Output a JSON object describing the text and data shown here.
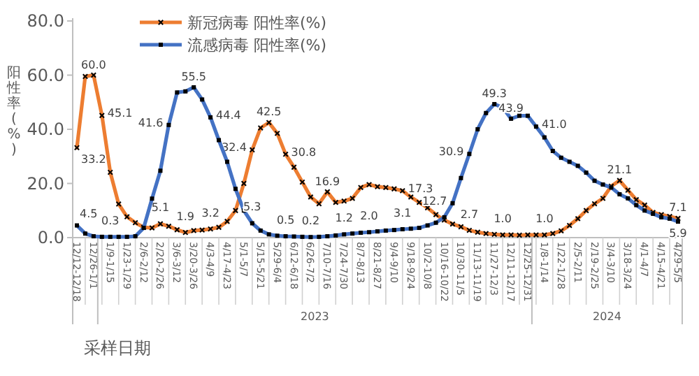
{
  "chart_data": {
    "type": "line",
    "ylabel": "阳性率(%)",
    "xlabel": "采样日期",
    "categories": [
      "12/12-12/18",
      null,
      "12/26-1/1",
      null,
      "1/9-1/15",
      null,
      "1/23-1/29",
      null,
      "2/6-2/12",
      null,
      "2/20-2/26",
      null,
      "3/6-3/12",
      null,
      "3/20-3/26",
      null,
      "4/3-4/9",
      null,
      "4/17-4/23",
      null,
      "5/1-5/7",
      null,
      "5/15-5/21",
      null,
      "5/29-6/4",
      null,
      "6/12-6/18",
      null,
      "6/26-7/2",
      null,
      "7/10-7/16",
      null,
      "7/24-7/30",
      null,
      "8/7-8/13",
      null,
      "8/21-8/27",
      null,
      "9/4-9/10",
      null,
      "9/18-9/24",
      null,
      "10/2-10/8",
      null,
      "10/16-10/22",
      null,
      "10/30-11/5",
      null,
      "11/13-11/19",
      null,
      "11/27-12/3",
      null,
      "12/11-12/17",
      null,
      "12/25-12/31",
      null,
      "1/8-1/14",
      null,
      "1/22-1/28",
      null,
      "2/5-2/11",
      null,
      "2/19-2/25",
      null,
      "3/4-3/10",
      null,
      "3/18-3/24",
      null,
      "4/1-4/7",
      null,
      "4/15-4/21",
      null,
      "4/29-5/5"
    ],
    "ylim": [
      0,
      80
    ],
    "yticks": [
      {
        "value": 0,
        "label": "0.0"
      },
      {
        "value": 20,
        "label": "20.0"
      },
      {
        "value": 40,
        "label": "40.0"
      },
      {
        "value": 60,
        "label": "60.0"
      },
      {
        "value": 80,
        "label": "80.0"
      }
    ],
    "legend": "top left",
    "grid": false,
    "line_style": "solid",
    "annotations": [
      "2023",
      "2024"
    ],
    "series": [
      {
        "name": "新冠病毒 阳性率(%)",
        "color": "#ed7d31",
        "marker": "cross",
        "values": [
          33.2,
          59.5,
          60.0,
          45.1,
          24.1,
          12.4,
          7.7,
          5.5,
          3.8,
          3.6,
          5.1,
          4.2,
          2.9,
          1.9,
          2.6,
          2.8,
          3.2,
          3.8,
          6.0,
          10.0,
          20.0,
          32.4,
          40.5,
          42.5,
          38.5,
          30.8,
          26.0,
          20.5,
          15.0,
          12.5,
          16.9,
          13.0,
          13.5,
          14.5,
          18.5,
          19.6,
          18.8,
          18.5,
          18.0,
          17.3,
          15.0,
          13.0,
          11.0,
          8.5,
          6.5,
          5.0,
          4.0,
          2.7,
          2.0,
          1.5,
          1.2,
          1.0,
          1.0,
          0.9,
          1.0,
          1.0,
          1.0,
          1.5,
          2.5,
          4.5,
          7.0,
          10.0,
          12.5,
          14.5,
          19.0,
          21.1,
          17.5,
          14.0,
          12.0,
          9.3,
          8.5,
          7.8,
          7.1
        ],
        "value_labels": [
          "33.2",
          null,
          "60.0",
          "45.1",
          null,
          null,
          null,
          null,
          null,
          null,
          "5.1",
          null,
          null,
          "1.9",
          null,
          null,
          "3.2",
          null,
          null,
          null,
          null,
          "32.4",
          null,
          "42.5",
          null,
          "30.8",
          null,
          null,
          null,
          null,
          "16.9",
          null,
          null,
          null,
          null,
          null,
          null,
          null,
          null,
          "17.3",
          null,
          null,
          null,
          null,
          null,
          null,
          null,
          "2.7",
          null,
          null,
          null,
          "1.0",
          null,
          null,
          null,
          null,
          "1.0",
          null,
          null,
          null,
          null,
          null,
          null,
          null,
          null,
          "21.1",
          null,
          null,
          null,
          null,
          null,
          null,
          "7.1"
        ]
      },
      {
        "name": "流感病毒 阳性率(%)",
        "color": "#4472c4",
        "marker": "square",
        "values": [
          4.5,
          1.5,
          0.5,
          0.3,
          0.3,
          0.3,
          0.3,
          0.5,
          3.6,
          14.4,
          24.7,
          41.6,
          53.6,
          54.0,
          55.5,
          51.0,
          44.4,
          36.0,
          28.0,
          18.0,
          10.0,
          5.3,
          2.6,
          1.2,
          0.7,
          0.5,
          0.4,
          0.3,
          0.2,
          0.3,
          0.5,
          0.8,
          1.2,
          1.5,
          1.8,
          2.0,
          2.3,
          2.6,
          2.8,
          3.1,
          3.3,
          3.6,
          4.5,
          5.5,
          7.5,
          12.7,
          22.0,
          30.9,
          40.0,
          46.0,
          49.3,
          48.0,
          43.9,
          45.0,
          45.0,
          41.0,
          37.0,
          32.0,
          29.5,
          28.0,
          26.5,
          24.0,
          21.0,
          19.6,
          18.5,
          16.0,
          14.5,
          12.0,
          10.0,
          8.8,
          7.5,
          7.0,
          5.9
        ],
        "value_labels": [
          "4.5",
          null,
          null,
          null,
          "0.3",
          null,
          null,
          null,
          null,
          null,
          null,
          "41.6",
          null,
          null,
          "55.5",
          null,
          "44.4",
          null,
          null,
          null,
          null,
          "5.3",
          null,
          null,
          null,
          "0.5",
          null,
          null,
          "0.2",
          null,
          null,
          null,
          "1.2",
          null,
          null,
          "2.0",
          null,
          null,
          null,
          "3.1",
          null,
          null,
          null,
          null,
          null,
          "12.7",
          null,
          "30.9",
          null,
          null,
          "49.3",
          null,
          "43.9",
          null,
          null,
          "41.0",
          null,
          null,
          null,
          null,
          null,
          null,
          null,
          null,
          null,
          null,
          null,
          null,
          null,
          null,
          null,
          null,
          "5.9"
        ]
      }
    ]
  }
}
